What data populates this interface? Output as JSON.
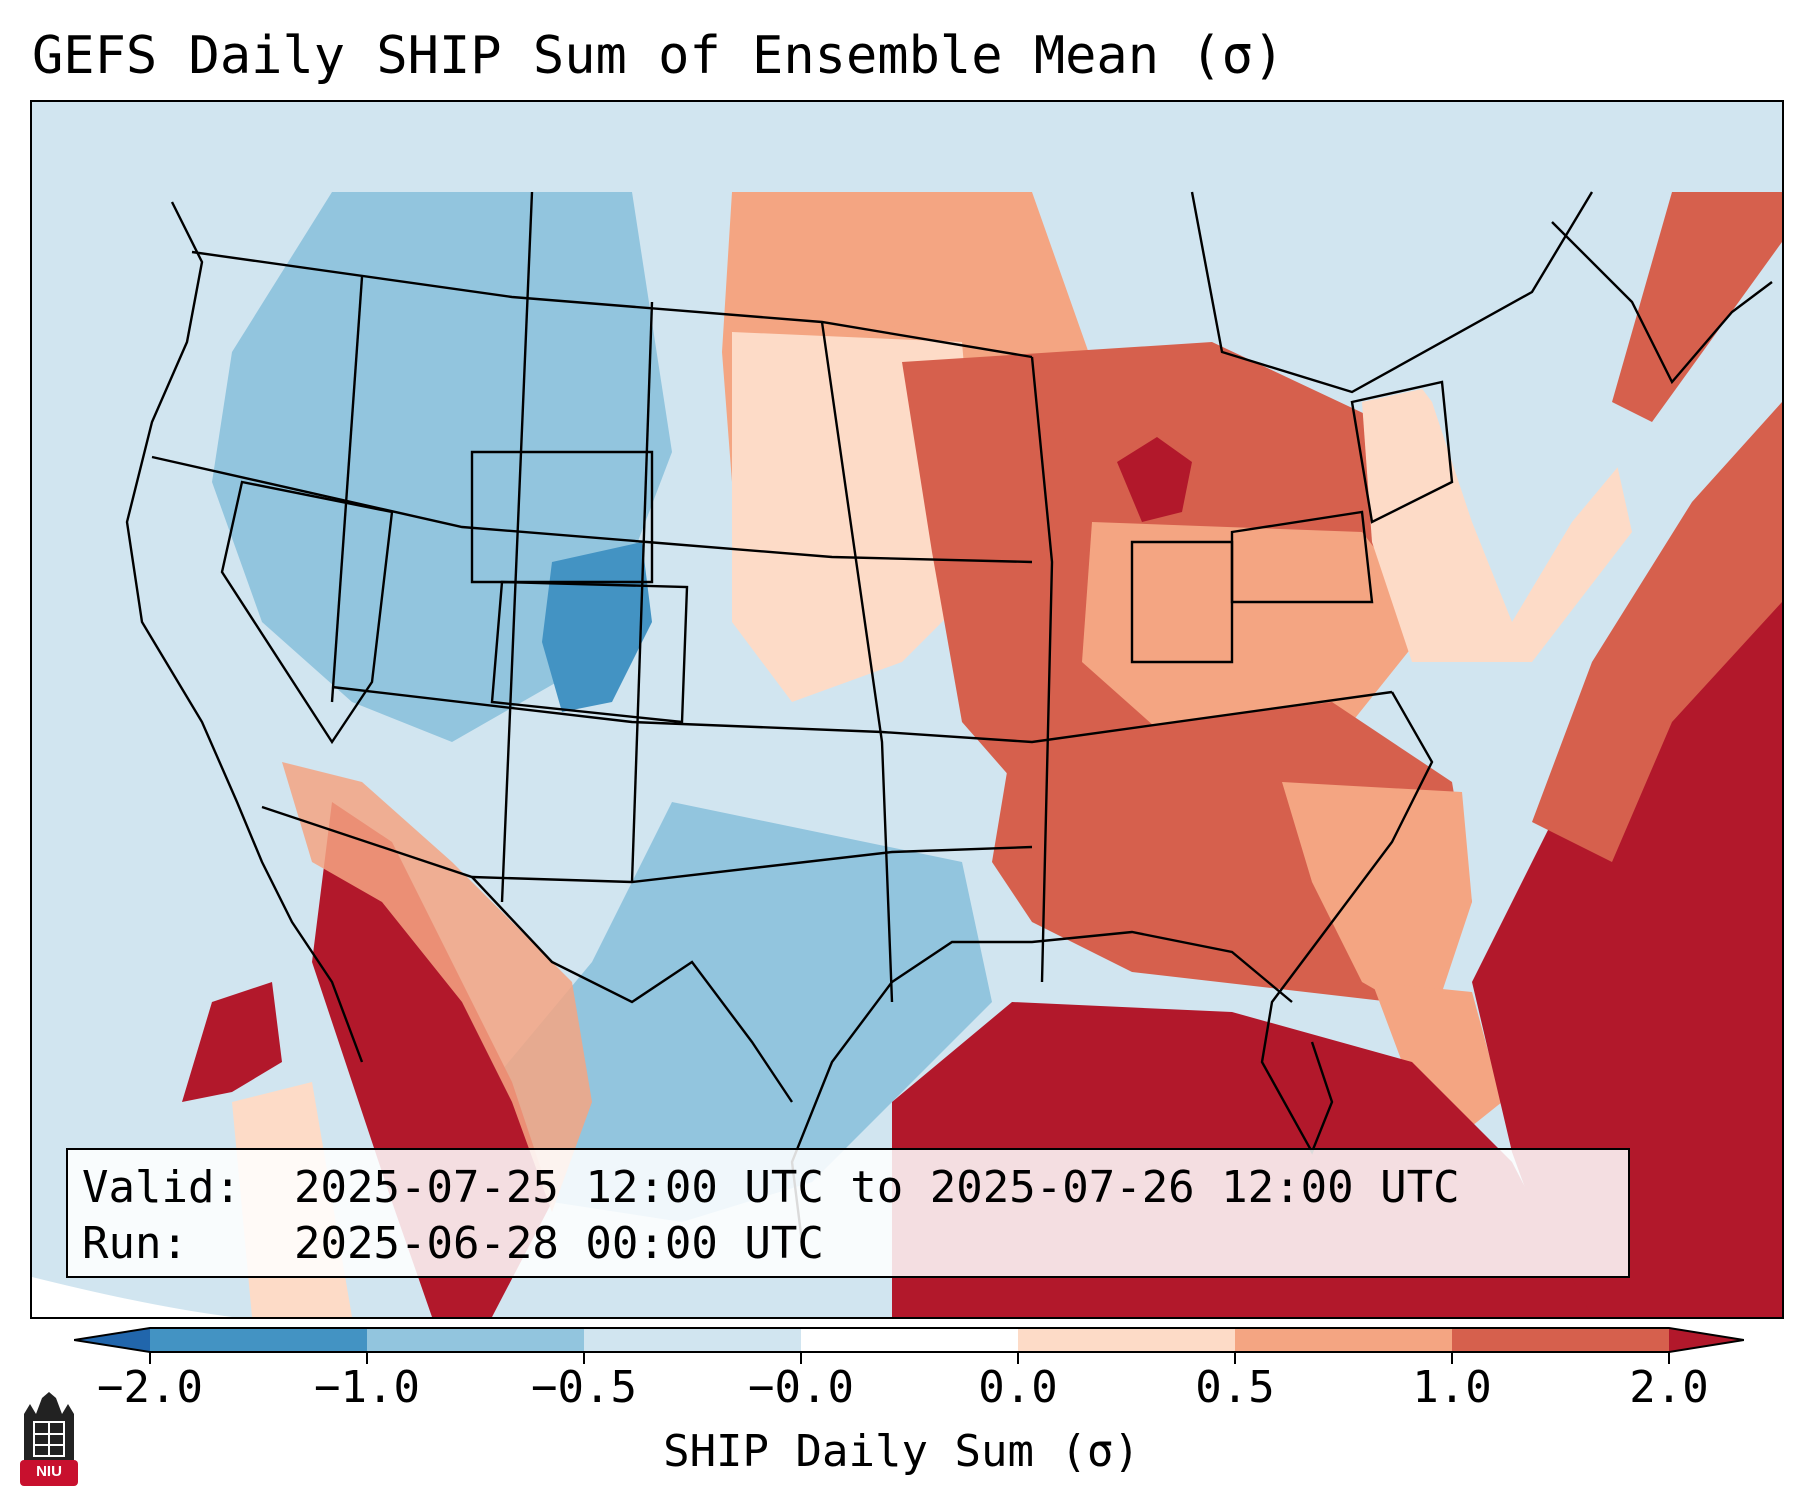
{
  "title": "GEFS Daily SHIP Sum of Ensemble Mean (σ)",
  "info": {
    "valid_label": "Valid:",
    "valid_value": "2025-07-25 12:00 UTC to 2025-07-26 12:00 UTC",
    "run_label": "Run:",
    "run_value": "2025-06-28 00:00 UTC"
  },
  "colorbar": {
    "label": "SHIP Daily Sum (σ)",
    "ticks": [
      "−2.0",
      "−1.0",
      "−0.5",
      "−0.0",
      "0.0",
      "0.5",
      "1.0",
      "2.0"
    ],
    "colors": [
      "#2166ac",
      "#4393c3",
      "#92c5de",
      "#d1e5f0",
      "#ffffff",
      "#fddbc7",
      "#f4a582",
      "#d6604d",
      "#b2182b"
    ],
    "extend": "both"
  },
  "map_regions": {
    "pacific_northwest": "#d1e5f0",
    "great_basin": "#92c5de",
    "southern_rockies": "#4393c3",
    "southwest": "#d1e5f0",
    "texas": "#92c5de",
    "northern_plains": "#f4a582",
    "midwest": "#d6604d",
    "southeast": "#d6604d",
    "gulf_of_mexico": "#b2182b",
    "atlantic": "#b2182b",
    "new_england": "#d1e5f0",
    "mexico_west_coast": "#b2182b"
  },
  "logo": {
    "text": "NIU",
    "color": "#c8102e"
  }
}
